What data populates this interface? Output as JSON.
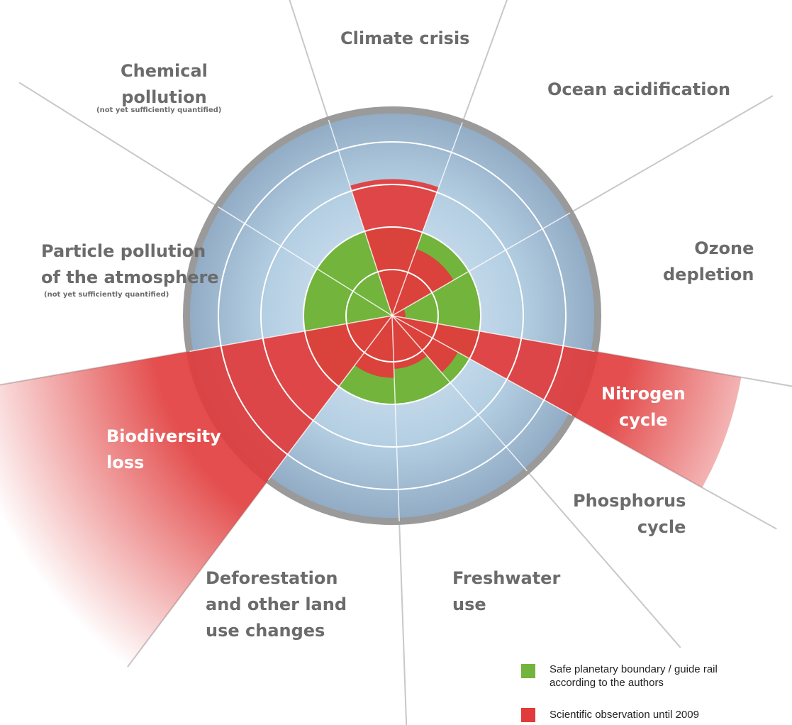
{
  "chart_data": {
    "type": "polar-wedge",
    "categories": [
      "Climate crisis",
      "Ocean acidification",
      "Ozone\ndepletion",
      "Nitrogen\ncycle",
      "Phosphorus\ncycle",
      "Freshwater\nuse",
      "Deforestation\nand other land\nuse changes",
      "Biodiversity\nloss",
      "Particle pollution\nof the atmosphere",
      "Chemical\npollution"
    ],
    "annotations": [
      "(not yet sufficiently quantified)",
      "(not yet sufficiently quantified)"
    ],
    "series": [
      {
        "name": "Safe planetary boundary / guide rail\naccording to the authors",
        "color": "#72b43c",
        "values": [
          1,
          1,
          1,
          1,
          1,
          1,
          1,
          1,
          1,
          1
        ]
      },
      {
        "name": "Scientific observation until 2009",
        "color": "#e13b3b",
        "values": [
          1.54,
          0.8,
          0.15,
          4,
          0.85,
          0.6,
          0.7,
          5,
          null,
          null
        ]
      }
    ]
  }
}
